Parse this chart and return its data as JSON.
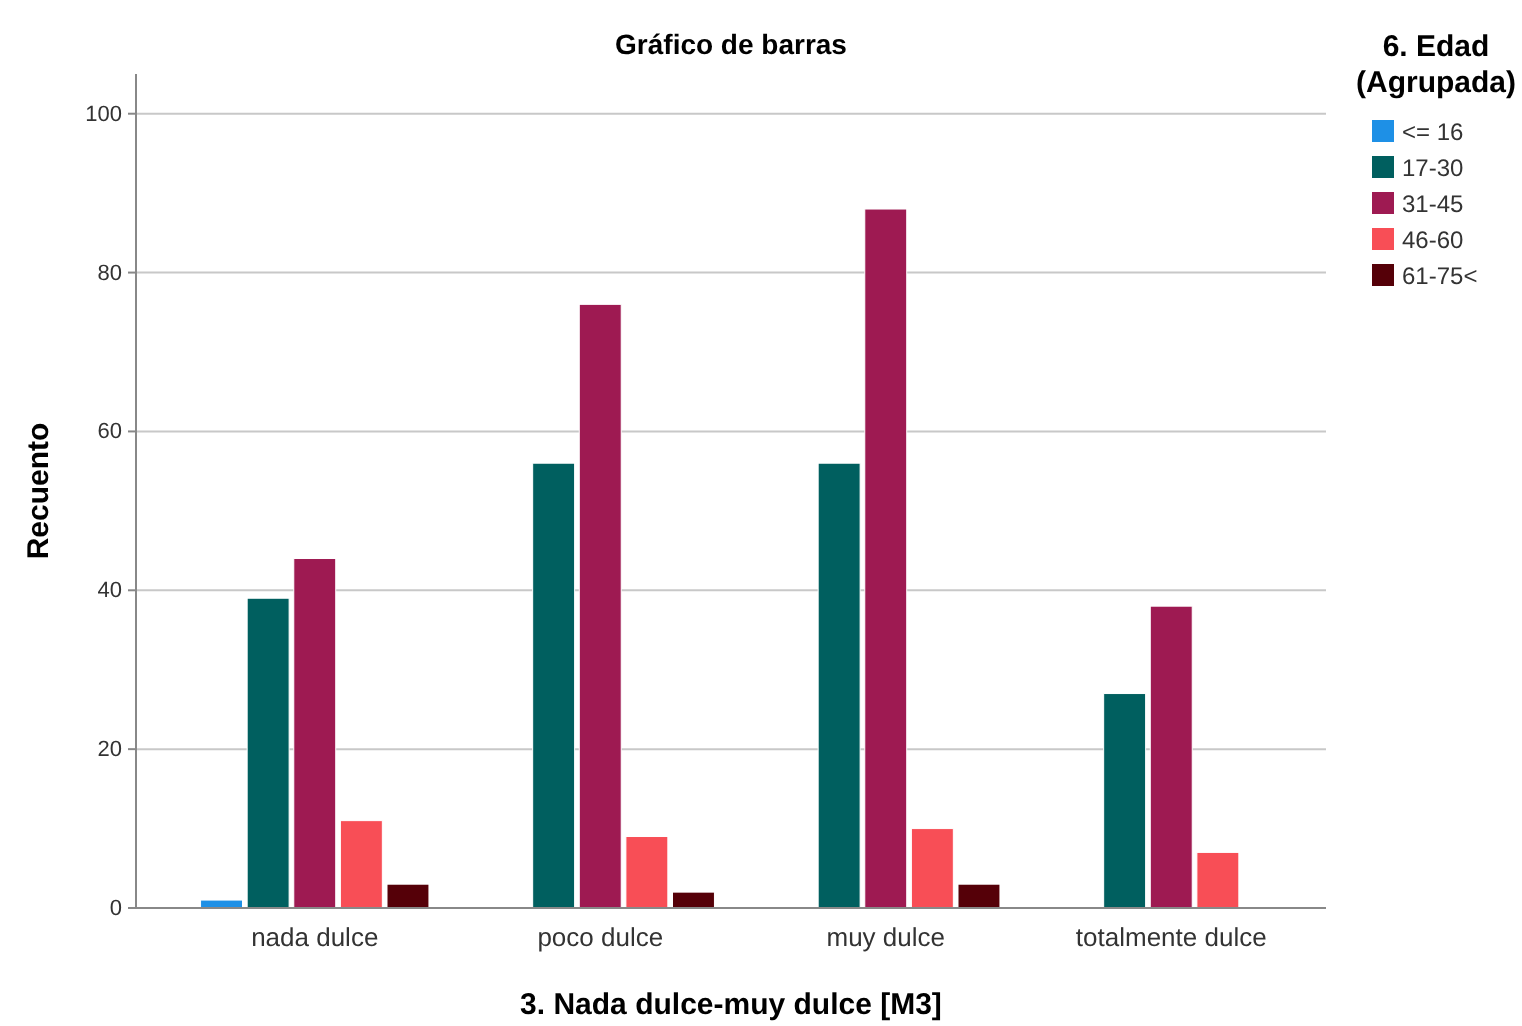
{
  "chart_data": {
    "type": "bar",
    "title": "Gráfico de barras",
    "xlabel": "3. Nada dulce-muy dulce [M3]",
    "ylabel": "Recuento",
    "legend_title": "6. Edad (Agrupada)",
    "categories": [
      "nada dulce",
      "poco dulce",
      "muy dulce",
      "totalmente dulce"
    ],
    "series": [
      {
        "name": "<= 16",
        "color": "#1e90e6",
        "values": [
          1,
          null,
          null,
          null
        ]
      },
      {
        "name": "17-30",
        "color": "#005f5f",
        "values": [
          39,
          56,
          56,
          27
        ]
      },
      {
        "name": "31-45",
        "color": "#9e1a52",
        "values": [
          44,
          76,
          88,
          38
        ]
      },
      {
        "name": "46-60",
        "color": "#f84e56",
        "values": [
          11,
          9,
          10,
          7
        ]
      },
      {
        "name": "61-75<",
        "color": "#550008",
        "values": [
          3,
          2,
          3,
          null
        ]
      }
    ],
    "ylim": [
      0,
      105
    ],
    "yticks": [
      0,
      20,
      40,
      60,
      80,
      100
    ],
    "grid": "y",
    "legend": "top right"
  }
}
